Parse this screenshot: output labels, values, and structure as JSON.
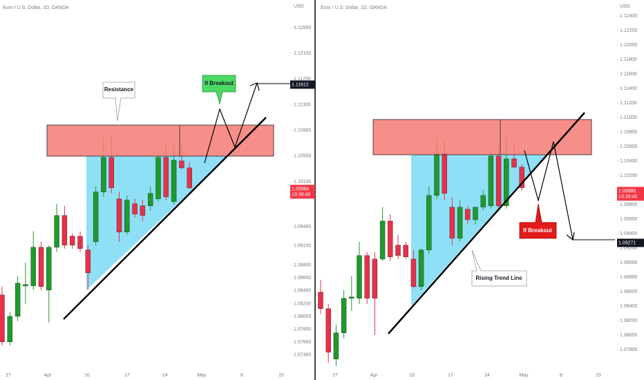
{
  "chart_data": [
    {
      "type": "candlestick",
      "title": "Euro / U.S. Dollar, 1D, OANDA",
      "currency": "USD",
      "xlabels": [
        "27",
        "Apr",
        "10",
        "17",
        "24",
        "May",
        "8",
        "15"
      ],
      "open": [
        1.08335,
        1.07604,
        1.08002,
        1.08475,
        1.08475,
        1.09078,
        1.08411,
        1.09078,
        1.09573,
        1.0925,
        1.0925,
        1.09035,
        1.09164,
        1.09939,
        1.10477,
        1.09831,
        1.09315,
        1.09756,
        1.09724,
        1.09724,
        1.09831,
        1.10477,
        1.09788,
        1.10423,
        1.10315
      ],
      "high": [
        1.08465,
        1.08066,
        1.08626,
        1.08841,
        1.09325,
        1.09164,
        1.0911,
        1.09756,
        1.09724,
        1.09293,
        1.09325,
        1.0911,
        1.10025,
        1.10778,
        1.10832,
        1.09939,
        1.09885,
        1.09831,
        1.0981,
        1.10025,
        1.10509,
        1.10724,
        1.10649,
        1.1067,
        1.10401
      ],
      "low": [
        1.0755,
        1.0755,
        1.07927,
        1.08196,
        1.08411,
        1.08411,
        1.07905,
        1.09003,
        1.09056,
        1.09056,
        1.09003,
        1.08411,
        1.0911,
        1.09863,
        1.09917,
        1.09164,
        1.09272,
        1.09541,
        1.09487,
        1.09648,
        1.09788,
        1.0981,
        1.09745,
        1.10294,
        1.09986
      ],
      "close": [
        1.07604,
        1.08002,
        1.08518,
        1.08497,
        1.09078,
        1.08465,
        1.09078,
        1.09573,
        1.0911,
        1.0911,
        1.09056,
        1.0868,
        1.09939,
        1.10477,
        1.10003,
        1.09315,
        1.0981,
        1.09594,
        1.09573,
        1.09917,
        1.10477,
        1.09863,
        1.10434,
        1.10315,
        1.10003
      ],
      "up_color": "#1e9a2c",
      "down_color": "#e8304a",
      "ylim": [
        1.0701,
        1.1293
      ],
      "yticks": [
        {
          "value": 1.125,
          "label": "1.12500"
        },
        {
          "value": 1.121,
          "label": "1.12100"
        },
        {
          "value": 1.117,
          "label": "1.11700"
        },
        {
          "value": 1.113,
          "label": "1.11300"
        },
        {
          "value": 1.109,
          "label": "1.10900"
        },
        {
          "value": 1.105,
          "label": "1.10500"
        },
        {
          "value": 1.101,
          "label": "1.10100"
        },
        {
          "value": 1.094,
          "label": "1.09400"
        },
        {
          "value": 1.091,
          "label": "1.09100"
        },
        {
          "value": 1.088,
          "label": "1.08800"
        },
        {
          "value": 1.086,
          "label": "1.08600"
        },
        {
          "value": 1.084,
          "label": "1.08400"
        },
        {
          "value": 1.082,
          "label": "1.08200"
        },
        {
          "value": 1.08,
          "label": "1.08000"
        },
        {
          "value": 1.078,
          "label": "1.07800"
        },
        {
          "value": 1.076,
          "label": "1.07600"
        },
        {
          "value": 1.074,
          "label": "1.07400"
        }
      ],
      "price_labels": [
        {
          "value": 1.11612,
          "label": "1.11612",
          "color": "#131722"
        },
        {
          "value": 1.09986,
          "label": "1.09986",
          "time": "13:39:45",
          "color": "#f23645"
        }
      ],
      "annotations": [
        "Resistance",
        "If Breakout"
      ]
    },
    {
      "type": "candlestick",
      "title": "Euro / U.S. Dollar, 1D, OANDA",
      "currency": "USD",
      "xlabels": [
        "27",
        "Apr",
        "10",
        "17",
        "24",
        "May",
        "8",
        "15"
      ],
      "open": [
        1.08591,
        1.08363,
        1.07668,
        1.08029,
        1.08506,
        1.08506,
        1.09096,
        1.09048,
        1.09048,
        1.09572,
        1.09239,
        1.09239,
        1.09048,
        1.08668,
        1.09172,
        1.09925,
        1.10506,
        1.09763,
        1.09334,
        1.09734,
        1.09591,
        1.09763,
        1.09782,
        1.10468,
        1.09782,
        1.1043,
        1.10315
      ],
      "high": [
        1.08763,
        1.08429,
        1.08144,
        1.0862,
        1.0881,
        1.09287,
        1.09144,
        1.09144,
        1.09763,
        1.09668,
        1.09382,
        1.09287,
        1.09172,
        1.09191,
        1.10049,
        1.10715,
        1.10668,
        1.09906,
        1.09858,
        1.09781,
        1.09763,
        1.10001,
        1.10544,
        1.1062,
        1.10715,
        1.1062,
        1.10353
      ],
      "low": [
        1.08287,
        1.0762,
        1.07572,
        1.07953,
        1.08334,
        1.08429,
        1.08429,
        1.08001,
        1.0902,
        1.0902,
        1.09048,
        1.09048,
        1.08639,
        1.0862,
        1.09115,
        1.09877,
        1.09858,
        1.09239,
        1.09287,
        1.09525,
        1.09525,
        1.09715,
        1.09744,
        1.09715,
        1.09744,
        1.10296,
        1.09991
      ],
      "close": [
        1.08363,
        1.07763,
        1.08029,
        1.08506,
        1.08525,
        1.09096,
        1.08506,
        1.08506,
        1.09572,
        1.09077,
        1.09096,
        1.09077,
        1.08668,
        1.09172,
        1.09925,
        1.10506,
        1.09953,
        1.09334,
        1.09763,
        1.09591,
        1.09763,
        1.09925,
        1.10468,
        1.09782,
        1.1043,
        1.10315,
        1.1003
      ],
      "up_color": "#1e9a2c",
      "down_color": "#e8304a",
      "ylim": [
        1.0738,
        1.1262
      ],
      "yticks": [
        {
          "value": 1.124,
          "label": "1.12400"
        },
        {
          "value": 1.122,
          "label": "1.12200"
        },
        {
          "value": 1.12,
          "label": "1.12000"
        },
        {
          "value": 1.118,
          "label": "1.11800"
        },
        {
          "value": 1.116,
          "label": "1.11600"
        },
        {
          "value": 1.114,
          "label": "1.11400"
        },
        {
          "value": 1.112,
          "label": "1.11200"
        },
        {
          "value": 1.11,
          "label": "1.11000"
        },
        {
          "value": 1.108,
          "label": "1.10800"
        },
        {
          "value": 1.106,
          "label": "1.10600"
        },
        {
          "value": 1.104,
          "label": "1.10400"
        },
        {
          "value": 1.102,
          "label": "1.10200"
        },
        {
          "value": 1.098,
          "label": "1.09800"
        },
        {
          "value": 1.096,
          "label": "1.09600"
        },
        {
          "value": 1.094,
          "label": "1.09400"
        },
        {
          "value": 1.092,
          "label": "1.09200"
        },
        {
          "value": 1.09,
          "label": "1.09000"
        },
        {
          "value": 1.088,
          "label": "1.08800"
        },
        {
          "value": 1.086,
          "label": "1.08600"
        },
        {
          "value": 1.084,
          "label": "1.08400"
        },
        {
          "value": 1.082,
          "label": "1.08200"
        },
        {
          "value": 1.08,
          "label": "1.08000"
        },
        {
          "value": 1.078,
          "label": "1.07800"
        }
      ],
      "price_labels": [
        {
          "value": 1.09986,
          "label": "1.09986",
          "time": "13:39:45",
          "color": "#f23645"
        },
        {
          "value": 1.09271,
          "label": "1.09271",
          "color": "#131722"
        }
      ],
      "annotations": [
        "If Breakout",
        "Rising Trend Line"
      ]
    }
  ]
}
